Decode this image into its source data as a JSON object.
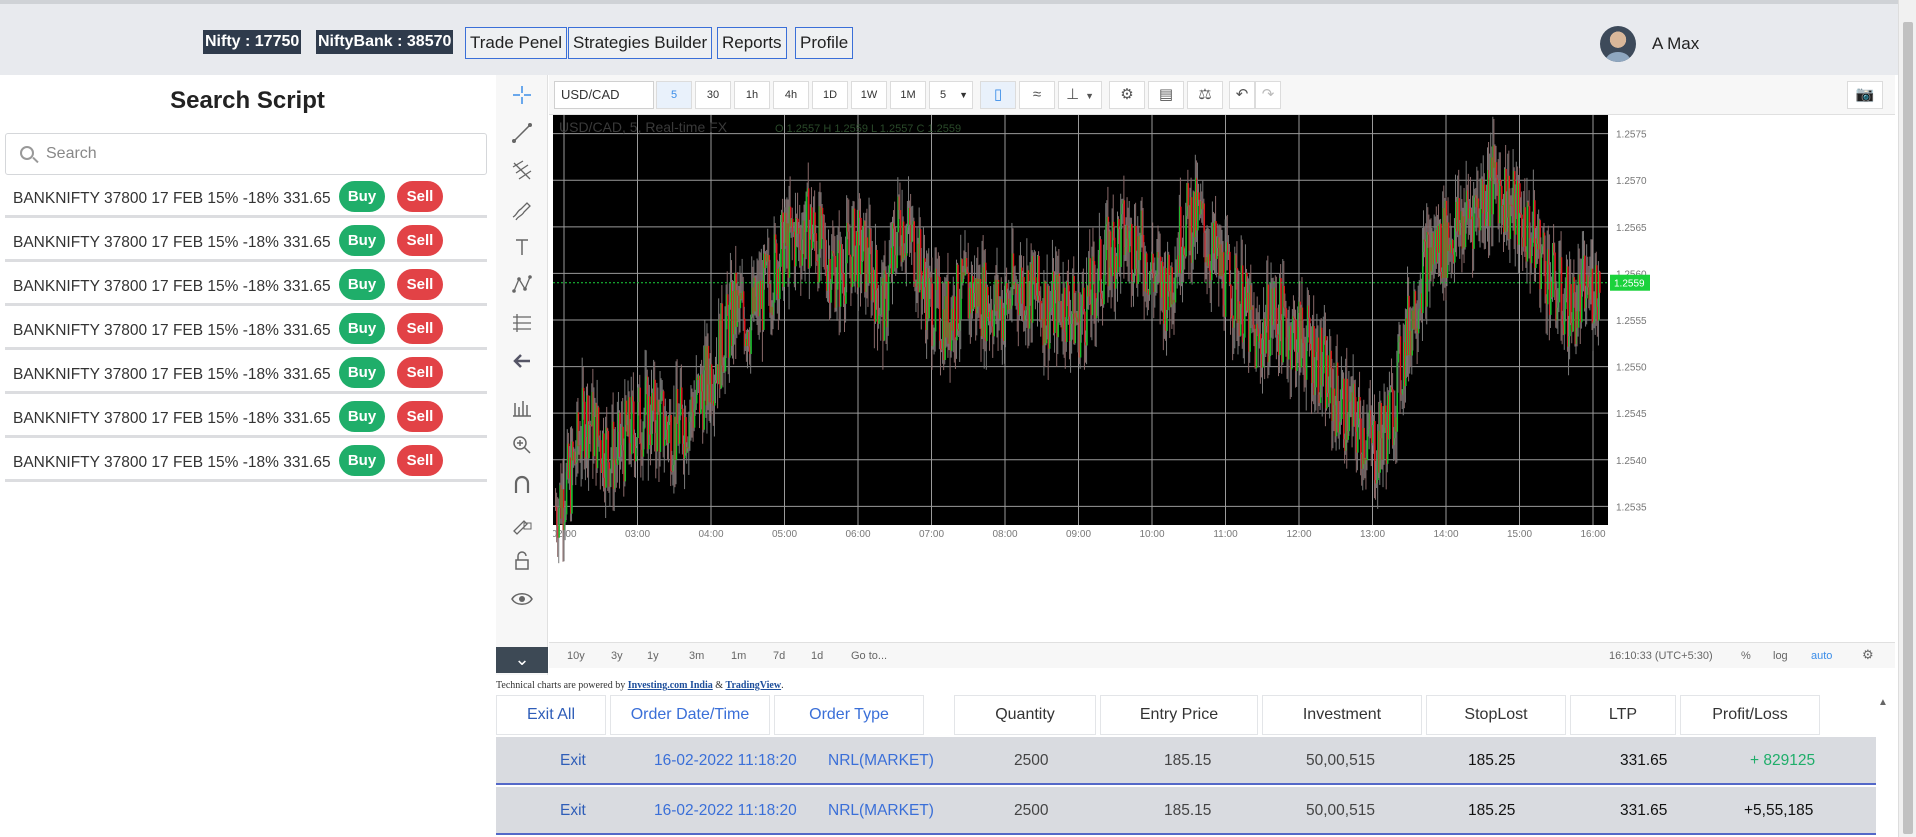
{
  "topbar": {
    "nifty": "Nifty : 17750",
    "niftybank": "NiftyBank : 38570",
    "nav": [
      "Trade Penel",
      "Strategies Builder",
      "Reports",
      "Profile"
    ],
    "user": "A Max"
  },
  "left": {
    "title": "Search Script",
    "search_placeholder": "Search",
    "scripts": [
      {
        "name": "BANKNIFTY 37800 17 FEB 15% -18% 331.65",
        "buy": "Buy",
        "sell": "Sell"
      },
      {
        "name": "BANKNIFTY 37800 17 FEB 15% -18% 331.65",
        "buy": "Buy",
        "sell": "Sell"
      },
      {
        "name": "BANKNIFTY 37800 17 FEB 15% -18% 331.65",
        "buy": "Buy",
        "sell": "Sell"
      },
      {
        "name": "BANKNIFTY 37800 17 FEB 15% -18% 331.65",
        "buy": "Buy",
        "sell": "Sell"
      },
      {
        "name": "BANKNIFTY 37800 17 FEB 15% -18% 331.65",
        "buy": "Buy",
        "sell": "Sell"
      },
      {
        "name": "BANKNIFTY 37800 17 FEB 15% -18% 331.65",
        "buy": "Buy",
        "sell": "Sell"
      },
      {
        "name": "BANKNIFTY 37800 17 FEB 15% -18% 331.65",
        "buy": "Buy",
        "sell": "Sell"
      }
    ]
  },
  "chart_toolbar": {
    "symbol": "USD/CAD",
    "timeframes": [
      "5",
      "30",
      "1h",
      "4h",
      "1D",
      "1W",
      "1M"
    ],
    "active_timeframe": "5",
    "interval_select": "5"
  },
  "chart_bottom": {
    "ranges": [
      "10y",
      "3y",
      "1y",
      "3m",
      "1m",
      "7d",
      "1d",
      "Go to..."
    ],
    "clock": "16:10:33 (UTC+5:30)",
    "percent": "%",
    "log": "log",
    "auto": "auto"
  },
  "credit": {
    "prefix": "Technical charts are powered by ",
    "link1": "Investing.com India",
    "mid": " & ",
    "link2": "TradingView",
    "suffix": "."
  },
  "orders": {
    "exit_all": "Exit All",
    "headers": [
      "Order Date/Time",
      "Order Type",
      "Quantity",
      "Entry Price",
      "Investment",
      "StopLost",
      "LTP",
      "Profit/Loss"
    ],
    "rows": [
      {
        "exit": "Exit",
        "datetime": "16-02-2022 11:18:20",
        "type": "NRL(MARKET)",
        "qty": "2500",
        "entry": "185.15",
        "investment": "50,00,515",
        "stoploss": "185.25",
        "ltp": "331.65",
        "pl": "+ 829125"
      },
      {
        "exit": "Exit",
        "datetime": "16-02-2022 11:18:20",
        "type": "NRL(MARKET)",
        "qty": "2500",
        "entry": "185.15",
        "investment": "50,00,515",
        "stoploss": "185.25",
        "ltp": "331.65",
        "pl": "+5,55,185"
      }
    ]
  },
  "colors": {
    "buy": "#1fae6a",
    "sell": "#e24246",
    "accent": "#3a6fd8",
    "chart_bg": "#000000",
    "up_candle": "#16c02a",
    "down_candle": "#e0141b"
  },
  "chart_data": {
    "type": "candlestick",
    "title": "USD/CAD, 5, Real-time FX",
    "ohlc_legend": "O 1.2557  H 1.2559  L 1.2557  C 1.2559",
    "last_price": "1.2559",
    "x_ticks": [
      "02:00",
      "03:00",
      "04:00",
      "05:00",
      "06:00",
      "07:00",
      "08:00",
      "09:00",
      "10:00",
      "11:00",
      "12:00",
      "13:00",
      "14:00",
      "15:00",
      "16:00"
    ],
    "y_ticks": [
      "1.2575",
      "1.2570",
      "1.2565",
      "1.2560",
      "1.2555",
      "1.2550",
      "1.2545",
      "1.2540",
      "1.2535"
    ],
    "ylim": [
      1.2533,
      1.2577
    ],
    "close_path": [
      1.2535,
      1.2538,
      1.2545,
      1.2542,
      1.254,
      1.2543,
      1.2545,
      1.2544,
      1.2543,
      1.2545,
      1.2548,
      1.2552,
      1.2556,
      1.2555,
      1.2558,
      1.2562,
      1.2564,
      1.2565,
      1.2562,
      1.256,
      1.2563,
      1.2561,
      1.2556,
      1.2566,
      1.2563,
      1.2557,
      1.2555,
      1.2557,
      1.2558,
      1.2557,
      1.2556,
      1.2559,
      1.2558,
      1.2556,
      1.2557,
      1.2555,
      1.2558,
      1.2562,
      1.2564,
      1.2563,
      1.256,
      1.2558,
      1.2565,
      1.2566,
      1.2562,
      1.2559,
      1.2557,
      1.2552,
      1.2556,
      1.2554,
      1.2553,
      1.2551,
      1.2547,
      1.2545,
      1.2543,
      1.2541,
      1.2545,
      1.2553,
      1.256,
      1.2563,
      1.2564,
      1.2566,
      1.2568,
      1.257,
      1.2567,
      1.2565,
      1.2562,
      1.2558,
      1.2556,
      1.2558,
      1.2559
    ]
  }
}
